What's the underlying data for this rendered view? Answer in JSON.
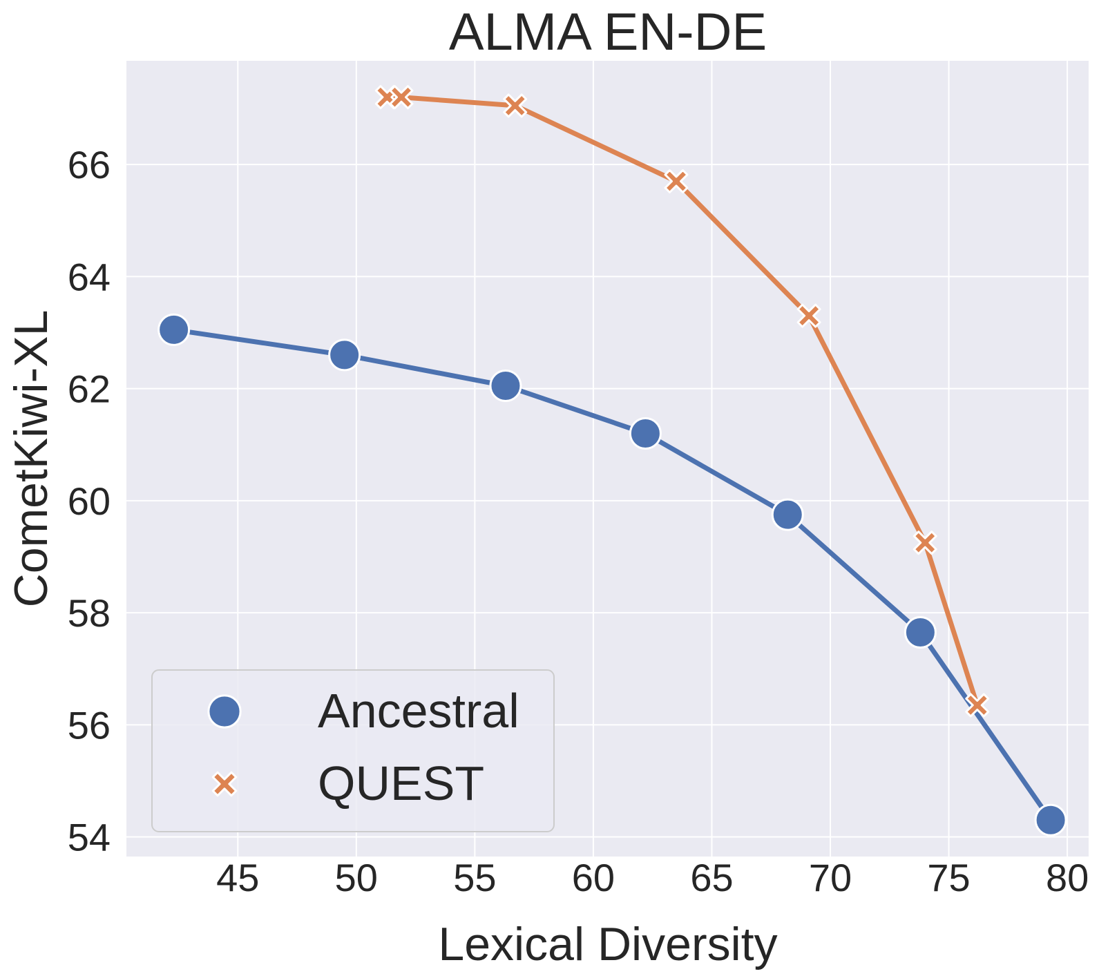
{
  "chart_data": {
    "type": "line",
    "title": "ALMA EN-DE",
    "xlabel": "Lexical Diversity",
    "ylabel": "CometKiwi-XL",
    "xlim": [
      40.3,
      80.9
    ],
    "ylim": [
      53.65,
      67.85
    ],
    "xticks": [
      45,
      50,
      55,
      60,
      65,
      70,
      75,
      80
    ],
    "yticks": [
      54,
      56,
      58,
      60,
      62,
      64,
      66
    ],
    "grid": true,
    "legend_position": "lower-left",
    "series": [
      {
        "name": "Ancestral",
        "marker": "circle",
        "color": "#4C72B0",
        "points": [
          {
            "x": 42.3,
            "y": 63.05
          },
          {
            "x": 49.5,
            "y": 62.6
          },
          {
            "x": 56.3,
            "y": 62.05
          },
          {
            "x": 62.2,
            "y": 61.2
          },
          {
            "x": 68.2,
            "y": 59.75
          },
          {
            "x": 73.8,
            "y": 57.65
          },
          {
            "x": 79.3,
            "y": 54.3
          }
        ]
      },
      {
        "name": "QUEST",
        "marker": "x",
        "color": "#DD8452",
        "points": [
          {
            "x": 51.3,
            "y": 67.2
          },
          {
            "x": 51.9,
            "y": 67.2
          },
          {
            "x": 56.7,
            "y": 67.05
          },
          {
            "x": 63.5,
            "y": 65.7
          },
          {
            "x": 69.1,
            "y": 63.3
          },
          {
            "x": 74.0,
            "y": 59.25
          },
          {
            "x": 76.2,
            "y": 56.35
          }
        ]
      }
    ]
  }
}
